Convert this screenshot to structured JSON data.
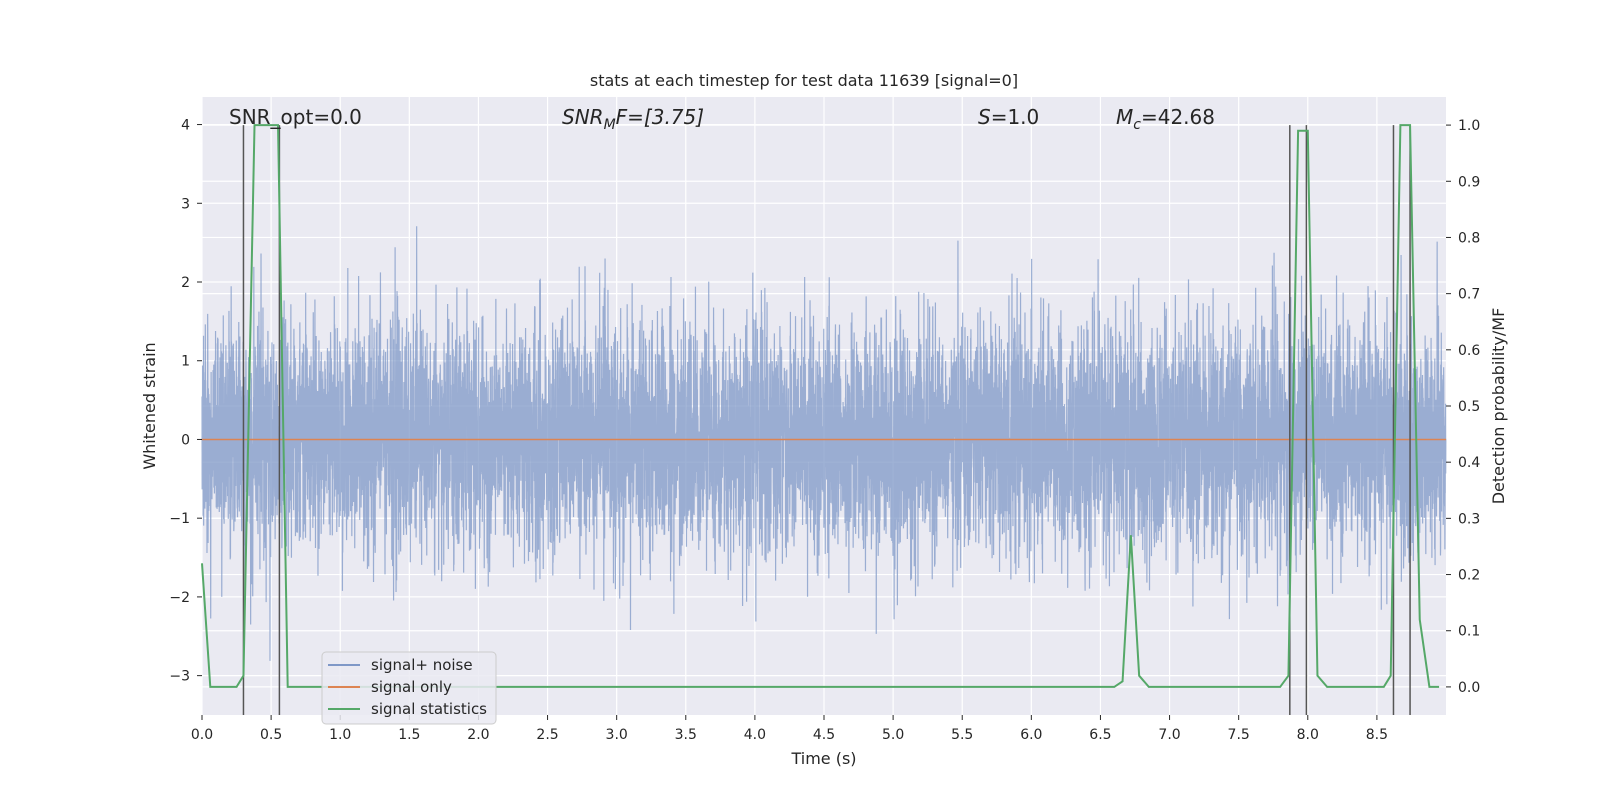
{
  "chart_data": {
    "type": "line",
    "title": "stats at each timestep for test data 11639 [signal=0]",
    "xlabel": "Time (s)",
    "ylabel": "Whitened strain",
    "y2label": "Detection probability/MF",
    "xlim": [
      0.0,
      9.0
    ],
    "ylim": [
      -3.5,
      4.35
    ],
    "y2lim": [
      -0.05,
      1.05
    ],
    "xticks": [
      0.0,
      0.5,
      1.0,
      1.5,
      2.0,
      2.5,
      3.0,
      3.5,
      4.0,
      4.5,
      5.0,
      5.5,
      6.0,
      6.5,
      7.0,
      7.5,
      8.0,
      8.5
    ],
    "xtick_labels": [
      "0.0",
      "0.5",
      "1.0",
      "1.5",
      "2.0",
      "2.5",
      "3.0",
      "3.5",
      "4.0",
      "4.5",
      "5.0",
      "5.5",
      "6.0",
      "6.5",
      "7.0",
      "7.5",
      "8.0",
      "8.5"
    ],
    "yticks": [
      -3,
      -2,
      -1,
      0,
      1,
      2,
      3,
      4
    ],
    "ytick_labels": [
      "−3",
      "−2",
      "−1",
      "0",
      "1",
      "2",
      "3",
      "4"
    ],
    "y2ticks": [
      0.0,
      0.1,
      0.2,
      0.3,
      0.4,
      0.5,
      0.6,
      0.7,
      0.8,
      0.9,
      1.0
    ],
    "y2tick_labels": [
      "0.0",
      "0.1",
      "0.2",
      "0.3",
      "0.4",
      "0.5",
      "0.6",
      "0.7",
      "0.8",
      "0.9",
      "1.0"
    ],
    "annotations": {
      "snr_opt": "SNR_opt=0.0",
      "snr_mf_base": "SNR",
      "snr_mf_sub": "M",
      "snr_mf_rest": "F=[3.75]",
      "s_sym": "S",
      "s_rest": "=1.0",
      "mc_sym": "M",
      "mc_sub": "c",
      "mc_rest": "=42.68"
    },
    "legend": {
      "placement": "lower-left",
      "entries": [
        "signal+ noise",
        "signal only",
        "signal statistics"
      ]
    },
    "series": [
      {
        "name": "signal+ noise",
        "color": "#7f98c7",
        "noise": {
          "samples": 9000,
          "sigma": 0.72,
          "seed": 11639
        }
      },
      {
        "name": "signal only",
        "color": "#dd8452",
        "x": [
          0.0,
          9.0
        ],
        "y": [
          0.0,
          0.0
        ]
      },
      {
        "name": "signal statistics",
        "color": "#55a868",
        "axis": "right",
        "x": [
          0.0,
          0.06,
          0.25,
          0.3,
          0.38,
          0.55,
          0.62,
          0.7,
          6.6,
          6.66,
          6.72,
          6.78,
          6.85,
          6.92,
          7.8,
          7.86,
          7.93,
          8.0,
          8.07,
          8.14,
          8.55,
          8.6,
          8.67,
          8.74,
          8.81,
          8.88,
          8.95
        ],
        "y": [
          0.22,
          0.0,
          0.0,
          0.02,
          1.0,
          1.0,
          0.0,
          0.0,
          0.0,
          0.01,
          0.27,
          0.02,
          0.0,
          0.0,
          0.0,
          0.02,
          0.99,
          0.99,
          0.02,
          0.0,
          0.0,
          0.02,
          1.0,
          1.0,
          0.12,
          0.0,
          0.0
        ]
      }
    ],
    "vlines": {
      "color": "#555555",
      "x": [
        0.3,
        0.56,
        7.87,
        7.99,
        8.62,
        8.74
      ],
      "ymin": -0.05,
      "ymax": 1.0
    }
  }
}
